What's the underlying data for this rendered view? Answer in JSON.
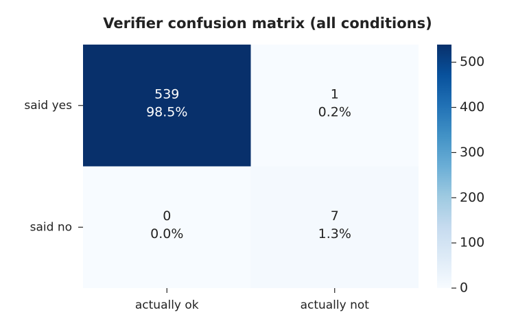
{
  "chart_data": {
    "type": "heatmap",
    "title": "Verifier confusion matrix (all conditions)",
    "x_categories": [
      "actually ok",
      "actually not"
    ],
    "y_categories": [
      "said yes",
      "said no"
    ],
    "values": [
      [
        539,
        1
      ],
      [
        0,
        7
      ]
    ],
    "share_labels": [
      [
        "98.5%",
        "0.2%"
      ],
      [
        "0.0%",
        "1.3%"
      ]
    ],
    "zlim": [
      0,
      539
    ],
    "zticks": [
      0,
      100,
      200,
      300,
      400,
      500
    ],
    "colormap": [
      "#f7fbff",
      "#deebf7",
      "#c6dbef",
      "#9ecae1",
      "#6baed6",
      "#4292c6",
      "#2171b5",
      "#08519c",
      "#08306b"
    ]
  }
}
